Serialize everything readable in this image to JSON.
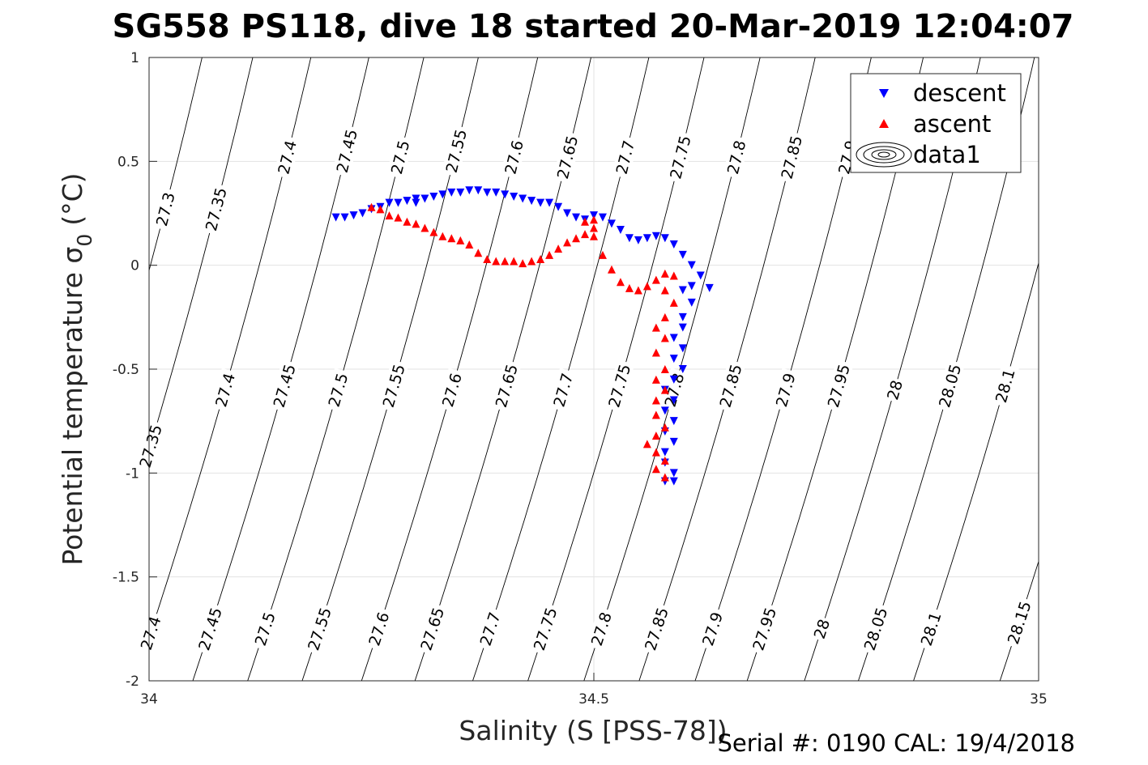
{
  "title": "SG558 PS118, dive 18 started 20-Mar-2019 12:04:07",
  "footer": "Serial #: 0190  CAL: 19/4/2018",
  "chart_data": {
    "type": "scatter",
    "xlabel": "Salinity (S [PSS-78])",
    "ylabel": "Potential temperature σ",
    "ylabel_sub": "0",
    "ylabel_unit": "(°C)",
    "xlim": [
      34,
      35
    ],
    "ylim": [
      -2,
      1
    ],
    "x_ticks": [
      "34",
      "34.5",
      "35"
    ],
    "y_ticks": [
      "-2",
      "-1.5",
      "-1",
      "-0.5",
      "0",
      "0.5",
      "1"
    ],
    "grid": true,
    "legend_position": "top-right",
    "legend": [
      "descent",
      "ascent",
      "data1"
    ],
    "density_contours": [
      {
        "sigma": 27.3,
        "labels": [
          {
            "s": 34.018,
            "t": 0.27,
            "text": "27.3"
          }
        ]
      },
      {
        "sigma": 27.35,
        "labels": [
          {
            "s": 34.075,
            "t": 0.27,
            "text": "27.35"
          },
          {
            "s": 34.015,
            "t": -0.87,
            "text": "27.35"
          }
        ]
      },
      {
        "sigma": 27.4,
        "labels": [
          {
            "s": 34.155,
            "t": 0.52,
            "text": "27.4"
          },
          {
            "s": 34.085,
            "t": -0.6,
            "text": "27.4"
          },
          {
            "s": 34.04,
            "t": -1.77,
            "text": "27.4"
          }
        ]
      },
      {
        "sigma": 27.45,
        "labels": [
          {
            "s": 34.222,
            "t": 0.55,
            "text": "27.45"
          },
          {
            "s": 34.15,
            "t": -0.58,
            "text": "27.45"
          },
          {
            "s": 34.102,
            "t": -1.75,
            "text": "27.45"
          }
        ]
      },
      {
        "sigma": 27.5,
        "labels": [
          {
            "s": 34.282,
            "t": 0.52,
            "text": "27.5"
          },
          {
            "s": 34.213,
            "t": -0.6,
            "text": "27.5"
          },
          {
            "s": 34.165,
            "t": -1.75,
            "text": "27.5"
          }
        ]
      },
      {
        "sigma": 27.55,
        "labels": [
          {
            "s": 34.345,
            "t": 0.55,
            "text": "27.55"
          },
          {
            "s": 34.275,
            "t": -0.58,
            "text": "27.55"
          },
          {
            "s": 34.228,
            "t": -1.75,
            "text": "27.55"
          }
        ]
      },
      {
        "sigma": 27.6,
        "labels": [
          {
            "s": 34.41,
            "t": 0.52,
            "text": "27.6"
          },
          {
            "s": 34.338,
            "t": -0.6,
            "text": "27.6"
          },
          {
            "s": 34.29,
            "t": -1.75,
            "text": "27.6"
          }
        ]
      },
      {
        "sigma": 27.65,
        "labels": [
          {
            "s": 34.47,
            "t": 0.52,
            "text": "27.65"
          },
          {
            "s": 34.4,
            "t": -0.58,
            "text": "27.65"
          },
          {
            "s": 34.352,
            "t": -1.75,
            "text": "27.65"
          }
        ]
      },
      {
        "sigma": 27.7,
        "labels": [
          {
            "s": 34.535,
            "t": 0.52,
            "text": "27.7"
          },
          {
            "s": 34.462,
            "t": -0.6,
            "text": "27.7"
          },
          {
            "s": 34.415,
            "t": -1.75,
            "text": "27.7"
          }
        ]
      },
      {
        "sigma": 27.75,
        "labels": [
          {
            "s": 34.597,
            "t": 0.52,
            "text": "27.75"
          },
          {
            "s": 34.525,
            "t": -0.58,
            "text": "27.75"
          },
          {
            "s": 34.478,
            "t": -1.75,
            "text": "27.75"
          }
        ]
      },
      {
        "sigma": 27.8,
        "labels": [
          {
            "s": 34.66,
            "t": 0.52,
            "text": "27.8"
          },
          {
            "s": 34.588,
            "t": -0.6,
            "text": "27.8"
          },
          {
            "s": 34.54,
            "t": -1.75,
            "text": "27.8"
          }
        ]
      },
      {
        "sigma": 27.85,
        "labels": [
          {
            "s": 34.722,
            "t": 0.52,
            "text": "27.85"
          },
          {
            "s": 34.65,
            "t": -0.58,
            "text": "27.85"
          },
          {
            "s": 34.602,
            "t": -1.75,
            "text": "27.85"
          }
        ]
      },
      {
        "sigma": 27.9,
        "labels": [
          {
            "s": 34.785,
            "t": 0.52,
            "text": "27.9"
          },
          {
            "s": 34.713,
            "t": -0.6,
            "text": "27.9"
          },
          {
            "s": 34.665,
            "t": -1.75,
            "text": "27.9"
          }
        ]
      },
      {
        "sigma": 27.95,
        "labels": [
          {
            "s": 34.775,
            "t": -0.58,
            "text": "27.95"
          },
          {
            "s": 34.728,
            "t": -1.75,
            "text": "27.95"
          }
        ]
      },
      {
        "sigma": 28.0,
        "labels": [
          {
            "s": 34.838,
            "t": -0.6,
            "text": "28"
          },
          {
            "s": 34.79,
            "t": -1.75,
            "text": "28"
          }
        ]
      },
      {
        "sigma": 28.05,
        "labels": [
          {
            "s": 34.9,
            "t": -0.58,
            "text": "28.05"
          },
          {
            "s": 34.852,
            "t": -1.75,
            "text": "28.05"
          }
        ]
      },
      {
        "sigma": 28.1,
        "labels": [
          {
            "s": 34.962,
            "t": -0.58,
            "text": "28.1"
          },
          {
            "s": 34.915,
            "t": -1.75,
            "text": "28.1"
          }
        ]
      },
      {
        "sigma": 28.15,
        "labels": [
          {
            "s": 34.978,
            "t": -1.72,
            "text": "28.15"
          }
        ]
      }
    ],
    "series": [
      {
        "name": "descent",
        "marker": "triangle-down",
        "color": "#0000ff",
        "points": [
          [
            34.21,
            0.23
          ],
          [
            34.22,
            0.23
          ],
          [
            34.23,
            0.24
          ],
          [
            34.24,
            0.25
          ],
          [
            34.25,
            0.27
          ],
          [
            34.26,
            0.28
          ],
          [
            34.27,
            0.3
          ],
          [
            34.28,
            0.3
          ],
          [
            34.29,
            0.31
          ],
          [
            34.3,
            0.32
          ],
          [
            34.31,
            0.32
          ],
          [
            34.3,
            0.3
          ],
          [
            34.32,
            0.33
          ],
          [
            34.33,
            0.34
          ],
          [
            34.34,
            0.35
          ],
          [
            34.35,
            0.35
          ],
          [
            34.36,
            0.36
          ],
          [
            34.37,
            0.36
          ],
          [
            34.38,
            0.35
          ],
          [
            34.39,
            0.35
          ],
          [
            34.4,
            0.34
          ],
          [
            34.41,
            0.33
          ],
          [
            34.42,
            0.32
          ],
          [
            34.43,
            0.31
          ],
          [
            34.44,
            0.3
          ],
          [
            34.45,
            0.3
          ],
          [
            34.46,
            0.28
          ],
          [
            34.47,
            0.25
          ],
          [
            34.48,
            0.23
          ],
          [
            34.49,
            0.22
          ],
          [
            34.5,
            0.24
          ],
          [
            34.51,
            0.23
          ],
          [
            34.52,
            0.2
          ],
          [
            34.53,
            0.17
          ],
          [
            34.54,
            0.13
          ],
          [
            34.55,
            0.12
          ],
          [
            34.56,
            0.13
          ],
          [
            34.57,
            0.14
          ],
          [
            34.58,
            0.13
          ],
          [
            34.59,
            0.1
          ],
          [
            34.6,
            0.05
          ],
          [
            34.61,
            0.0
          ],
          [
            34.62,
            -0.05
          ],
          [
            34.61,
            -0.1
          ],
          [
            34.63,
            -0.11
          ],
          [
            34.6,
            -0.12
          ],
          [
            34.61,
            -0.18
          ],
          [
            34.6,
            -0.25
          ],
          [
            34.6,
            -0.3
          ],
          [
            34.59,
            -0.35
          ],
          [
            34.6,
            -0.4
          ],
          [
            34.59,
            -0.45
          ],
          [
            34.6,
            -0.5
          ],
          [
            34.59,
            -0.55
          ],
          [
            34.58,
            -0.6
          ],
          [
            34.59,
            -0.65
          ],
          [
            34.58,
            -0.7
          ],
          [
            34.59,
            -0.75
          ],
          [
            34.58,
            -0.8
          ],
          [
            34.59,
            -0.85
          ],
          [
            34.58,
            -0.9
          ],
          [
            34.58,
            -0.95
          ],
          [
            34.59,
            -1.0
          ],
          [
            34.58,
            -1.04
          ],
          [
            34.59,
            -1.04
          ]
        ]
      },
      {
        "name": "ascent",
        "marker": "triangle-up",
        "color": "#ff0000",
        "points": [
          [
            34.25,
            0.28
          ],
          [
            34.26,
            0.27
          ],
          [
            34.27,
            0.24
          ],
          [
            34.28,
            0.23
          ],
          [
            34.29,
            0.21
          ],
          [
            34.3,
            0.2
          ],
          [
            34.31,
            0.18
          ],
          [
            34.32,
            0.16
          ],
          [
            34.33,
            0.14
          ],
          [
            34.34,
            0.13
          ],
          [
            34.35,
            0.12
          ],
          [
            34.36,
            0.1
          ],
          [
            34.37,
            0.06
          ],
          [
            34.38,
            0.03
          ],
          [
            34.39,
            0.02
          ],
          [
            34.4,
            0.02
          ],
          [
            34.41,
            0.02
          ],
          [
            34.42,
            0.01
          ],
          [
            34.43,
            0.02
          ],
          [
            34.44,
            0.03
          ],
          [
            34.45,
            0.05
          ],
          [
            34.46,
            0.08
          ],
          [
            34.47,
            0.11
          ],
          [
            34.48,
            0.13
          ],
          [
            34.49,
            0.15
          ],
          [
            34.5,
            0.18
          ],
          [
            34.5,
            0.22
          ],
          [
            34.49,
            0.21
          ],
          [
            34.5,
            0.14
          ],
          [
            34.51,
            0.05
          ],
          [
            34.52,
            -0.02
          ],
          [
            34.53,
            -0.08
          ],
          [
            34.54,
            -0.11
          ],
          [
            34.55,
            -0.12
          ],
          [
            34.56,
            -0.1
          ],
          [
            34.57,
            -0.07
          ],
          [
            34.58,
            -0.04
          ],
          [
            34.59,
            -0.05
          ],
          [
            34.58,
            -0.12
          ],
          [
            34.59,
            -0.18
          ],
          [
            34.58,
            -0.25
          ],
          [
            34.57,
            -0.3
          ],
          [
            34.58,
            -0.35
          ],
          [
            34.57,
            -0.42
          ],
          [
            34.58,
            -0.5
          ],
          [
            34.57,
            -0.55
          ],
          [
            34.58,
            -0.6
          ],
          [
            34.57,
            -0.65
          ],
          [
            34.57,
            -0.72
          ],
          [
            34.58,
            -0.78
          ],
          [
            34.57,
            -0.82
          ],
          [
            34.56,
            -0.86
          ],
          [
            34.57,
            -0.9
          ],
          [
            34.58,
            -0.94
          ],
          [
            34.57,
            -0.98
          ],
          [
            34.58,
            -1.02
          ]
        ]
      }
    ]
  }
}
